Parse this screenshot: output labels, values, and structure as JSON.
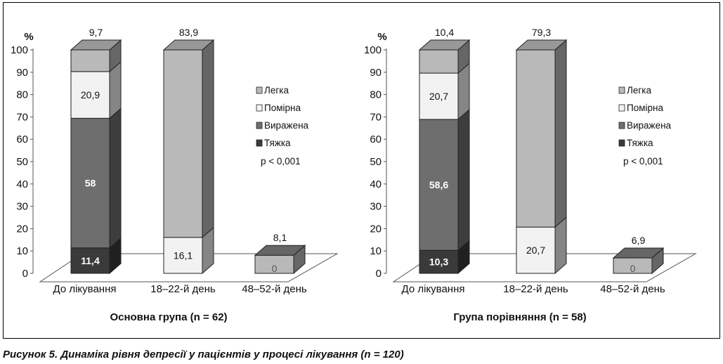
{
  "figure_caption": "Рисунок 5. Динаміка рівня депресії у пацієнтів у процесі лікування (n = 120)",
  "colors": {
    "Легка": "#b9b9b9",
    "Помірна": "#f2f2f2",
    "Виражена": "#6e6e6e",
    "Тяжка": "#3a3a3a"
  },
  "chart_data": [
    {
      "type": "bar",
      "stacked": true,
      "style": "3d",
      "title": "Основна група (n = 62)",
      "ylabel": "%",
      "ylim": [
        0,
        100
      ],
      "yticks": [
        0,
        10,
        20,
        30,
        40,
        50,
        60,
        70,
        80,
        90,
        100
      ],
      "categories": [
        "До лікування",
        "18–22-й день",
        "48–52-й день"
      ],
      "series": [
        {
          "name": "Тяжка",
          "values": [
            11.4,
            0,
            0
          ],
          "labels": [
            "11,4",
            "",
            ""
          ]
        },
        {
          "name": "Виражена",
          "values": [
            58,
            0,
            0
          ],
          "labels": [
            "58",
            "",
            ""
          ]
        },
        {
          "name": "Помірна",
          "values": [
            20.9,
            16.1,
            0
          ],
          "labels": [
            "20,9",
            "16,1",
            "0"
          ]
        },
        {
          "name": "Легка",
          "values": [
            9.7,
            83.9,
            8.1
          ],
          "labels": [
            "9,7",
            "83,9",
            "8,1"
          ]
        }
      ],
      "legend": [
        "Легка",
        "Помірна",
        "Виражена",
        "Тяжка"
      ],
      "legend_position": "right",
      "annotation": "p < 0,001"
    },
    {
      "type": "bar",
      "stacked": true,
      "style": "3d",
      "title": "Група порівняння (n = 58)",
      "ylabel": "%",
      "ylim": [
        0,
        100
      ],
      "yticks": [
        0,
        10,
        20,
        30,
        40,
        50,
        60,
        70,
        80,
        90,
        100
      ],
      "categories": [
        "До лікування",
        "18–22-й день",
        "48–52-й день"
      ],
      "series": [
        {
          "name": "Тяжка",
          "values": [
            10.3,
            0,
            0
          ],
          "labels": [
            "10,3",
            "",
            ""
          ]
        },
        {
          "name": "Виражена",
          "values": [
            58.6,
            0,
            0
          ],
          "labels": [
            "58,6",
            "",
            ""
          ]
        },
        {
          "name": "Помірна",
          "values": [
            20.7,
            20.7,
            0
          ],
          "labels": [
            "20,7",
            "20,7",
            "0"
          ]
        },
        {
          "name": "Легка",
          "values": [
            10.4,
            79.3,
            6.9
          ],
          "labels": [
            "10,4",
            "79,3",
            "6,9"
          ]
        }
      ],
      "legend": [
        "Легка",
        "Помірна",
        "Виражена",
        "Тяжка"
      ],
      "legend_position": "right",
      "annotation": "p < 0,001"
    }
  ]
}
